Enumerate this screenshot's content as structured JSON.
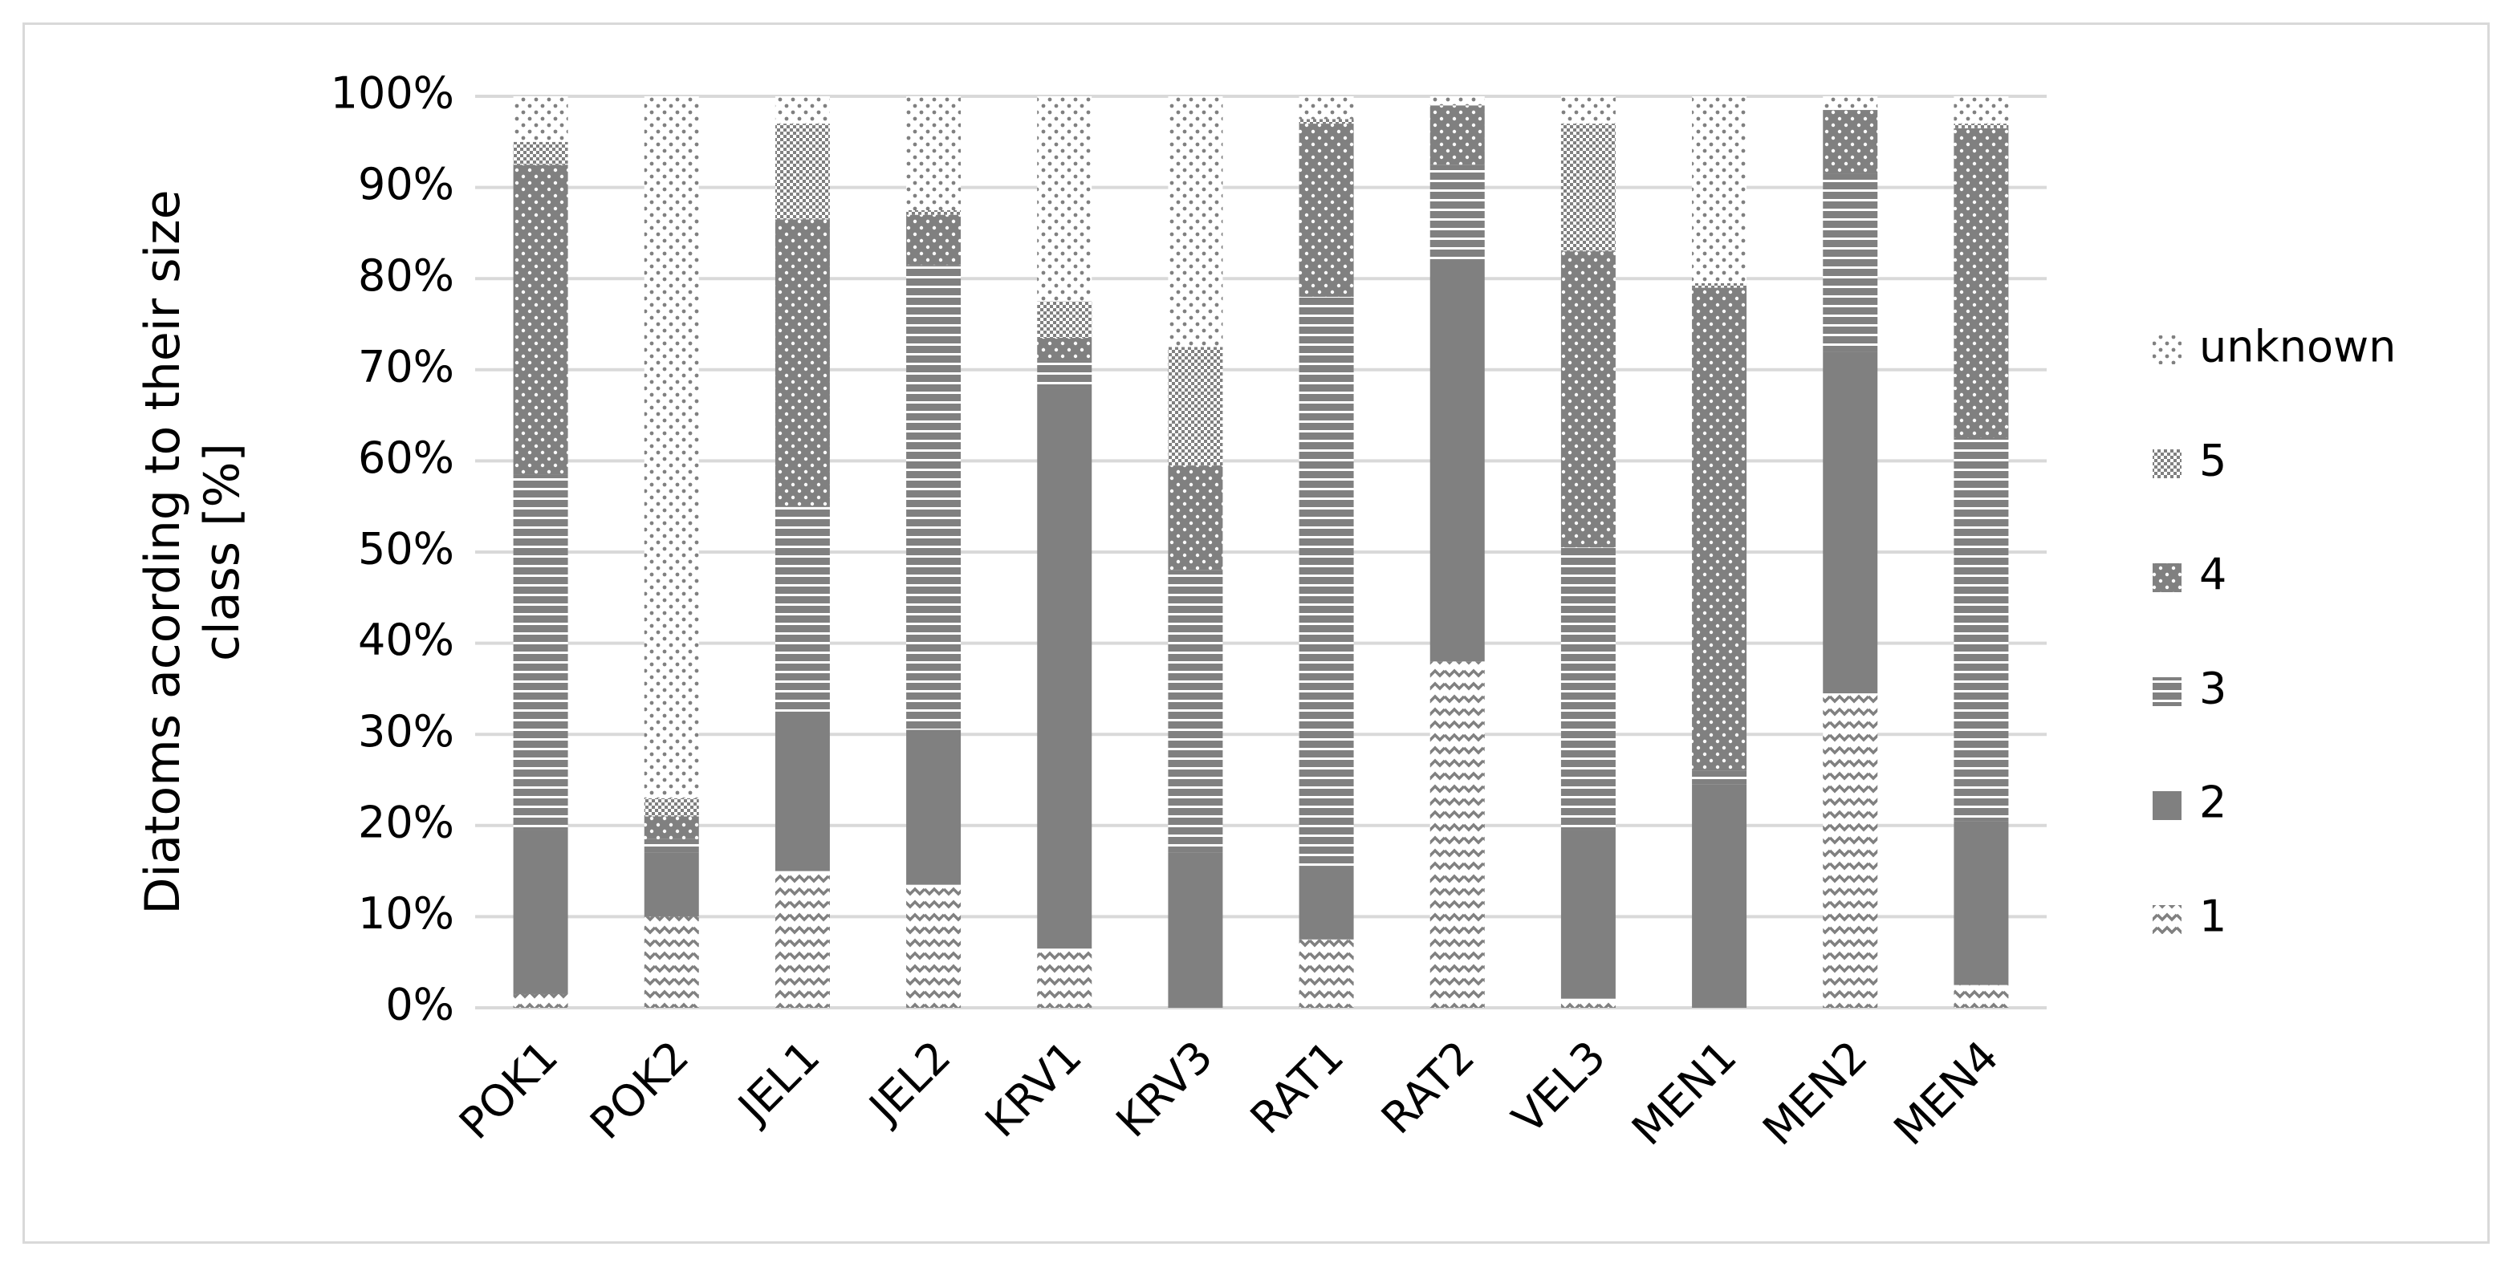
{
  "chart_data": {
    "type": "stacked_bar",
    "ylabel": "Diatoms acording to their size class [%]",
    "categories": [
      "POK1",
      "POK2",
      "JEL1",
      "JEL2",
      "KRV1",
      "KRV3",
      "RAT1",
      "RAT2",
      "VEL3",
      "MEN1",
      "MEN2",
      "MEN4"
    ],
    "series": [
      {
        "name": "1",
        "color": "#808080",
        "pattern": "zigzag",
        "values": [
          1.5,
          10,
          15,
          13.5,
          6.5,
          0,
          7.5,
          38,
          1,
          0,
          34.5,
          2.5
        ]
      },
      {
        "name": "2",
        "color": "#808080",
        "pattern": "solid",
        "values": [
          18,
          7,
          17.5,
          17,
          61.5,
          17,
          8,
          44,
          18.5,
          24.5,
          37.5,
          18
        ]
      },
      {
        "name": "3",
        "color": "#808080",
        "pattern": "hstripes",
        "values": [
          39,
          1.5,
          22.5,
          51,
          3,
          31,
          62.5,
          10.5,
          31,
          1.5,
          19.5,
          42
        ]
      },
      {
        "name": "4",
        "color": "#808080",
        "pattern": "dots-dark",
        "values": [
          34,
          2.5,
          31.5,
          5.5,
          2.5,
          11.5,
          19,
          6.5,
          32.5,
          53,
          7,
          34
        ]
      },
      {
        "name": "5",
        "color": "#808080",
        "pattern": "checker",
        "values": [
          2.5,
          2,
          10.5,
          0.5,
          4,
          13,
          0.5,
          0,
          14,
          0.5,
          0,
          0.5
        ]
      },
      {
        "name": "unknown",
        "color": "#808080",
        "pattern": "dots-light",
        "values": [
          5,
          77,
          3,
          12.5,
          22.5,
          27.5,
          2.5,
          1,
          3,
          20.5,
          1.5,
          3
        ]
      }
    ],
    "ylim": [
      0,
      100
    ],
    "yticks": [
      {
        "value": 0,
        "label": "0%"
      },
      {
        "value": 10,
        "label": "10%"
      },
      {
        "value": 20,
        "label": "20%"
      },
      {
        "value": 30,
        "label": "30%"
      },
      {
        "value": 40,
        "label": "40%"
      },
      {
        "value": 50,
        "label": "50%"
      },
      {
        "value": 60,
        "label": "60%"
      },
      {
        "value": 70,
        "label": "70%"
      },
      {
        "value": 80,
        "label": "80%"
      },
      {
        "value": 90,
        "label": "90%"
      },
      {
        "value": 100,
        "label": "100%"
      }
    ],
    "grid": true,
    "legend": "right"
  }
}
